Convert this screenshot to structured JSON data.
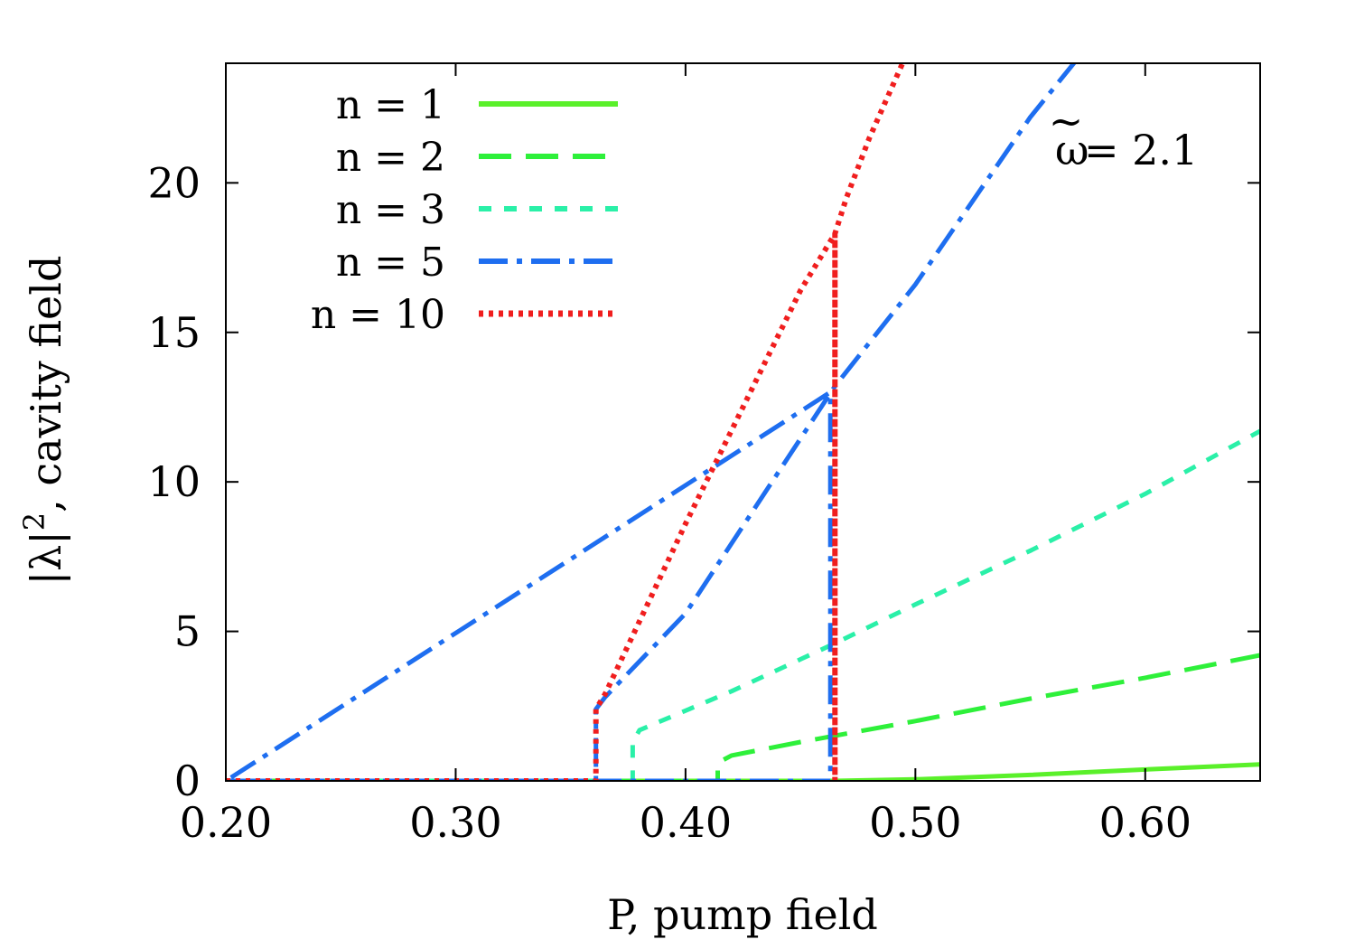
{
  "chart_data": {
    "type": "line",
    "xlabel": "P, pump field",
    "ylabel": "|λ|², cavity field",
    "ylabel_parts": {
      "base": "|λ|",
      "sup": "2",
      "rest": ", cavity field"
    },
    "xlim": [
      0.2,
      0.65
    ],
    "ylim": [
      0,
      24
    ],
    "x_ticks": [
      0.2,
      0.3,
      0.4,
      0.5,
      0.6
    ],
    "x_tick_labels": [
      "0.20",
      "0.30",
      "0.40",
      "0.50",
      "0.60"
    ],
    "y_ticks": [
      0,
      5,
      10,
      15,
      20
    ],
    "y_tick_labels": [
      "0",
      "5",
      "10",
      "15",
      "20"
    ],
    "grid": false,
    "legend_position": "top-left",
    "annotation": {
      "symbol": "ω",
      "accent": "~",
      "text": " = 2.1"
    },
    "series": [
      {
        "name": "n = 1",
        "color": "#5af02a",
        "dash": "solid",
        "x": [
          0.2,
          0.465,
          0.5,
          0.55,
          0.6,
          0.65
        ],
        "y": [
          0,
          0,
          0.05,
          0.2,
          0.38,
          0.55
        ]
      },
      {
        "name": "n = 2",
        "color": "#2ef03a",
        "dash": "dashed",
        "x": [
          0.2,
          0.414,
          0.414,
          0.42,
          0.45,
          0.5,
          0.55,
          0.6,
          0.65
        ],
        "y": [
          0,
          0,
          0.6,
          0.85,
          1.3,
          2.0,
          2.75,
          3.45,
          4.2
        ]
      },
      {
        "name": "n = 3",
        "color": "#2af0a8",
        "dash": "short-dashed",
        "x": [
          0.2,
          0.377,
          0.377,
          0.38,
          0.42,
          0.465,
          0.5,
          0.55,
          0.6,
          0.65
        ],
        "y": [
          0,
          0,
          1.3,
          1.7,
          3.0,
          4.6,
          5.9,
          7.7,
          9.6,
          11.7
        ]
      },
      {
        "name": "n = 5",
        "color": "#1e6ef0",
        "dash": "dash-dot",
        "x": [
          0.2,
          0.463,
          0.463,
          0.2,
          0.2,
          0.361,
          0.361,
          0.365,
          0.4,
          0.465,
          0.5,
          0.55,
          0.57
        ],
        "y": [
          0,
          0,
          13,
          0,
          0,
          0,
          2.4,
          2.8,
          5.6,
          13.2,
          16.6,
          22.2,
          24.1
        ]
      },
      {
        "name": "n = 10",
        "color": "#f01e1e",
        "dash": "dotted",
        "x": [
          0.2,
          0.361,
          0.361,
          0.365,
          0.4,
          0.45,
          0.465,
          0.465,
          0.465,
          0.47,
          0.48,
          0.495
        ],
        "y": [
          0,
          0,
          2.4,
          2.9,
          8.6,
          16.4,
          18.3,
          0,
          18.3,
          19.5,
          21.5,
          24.1
        ]
      }
    ]
  }
}
